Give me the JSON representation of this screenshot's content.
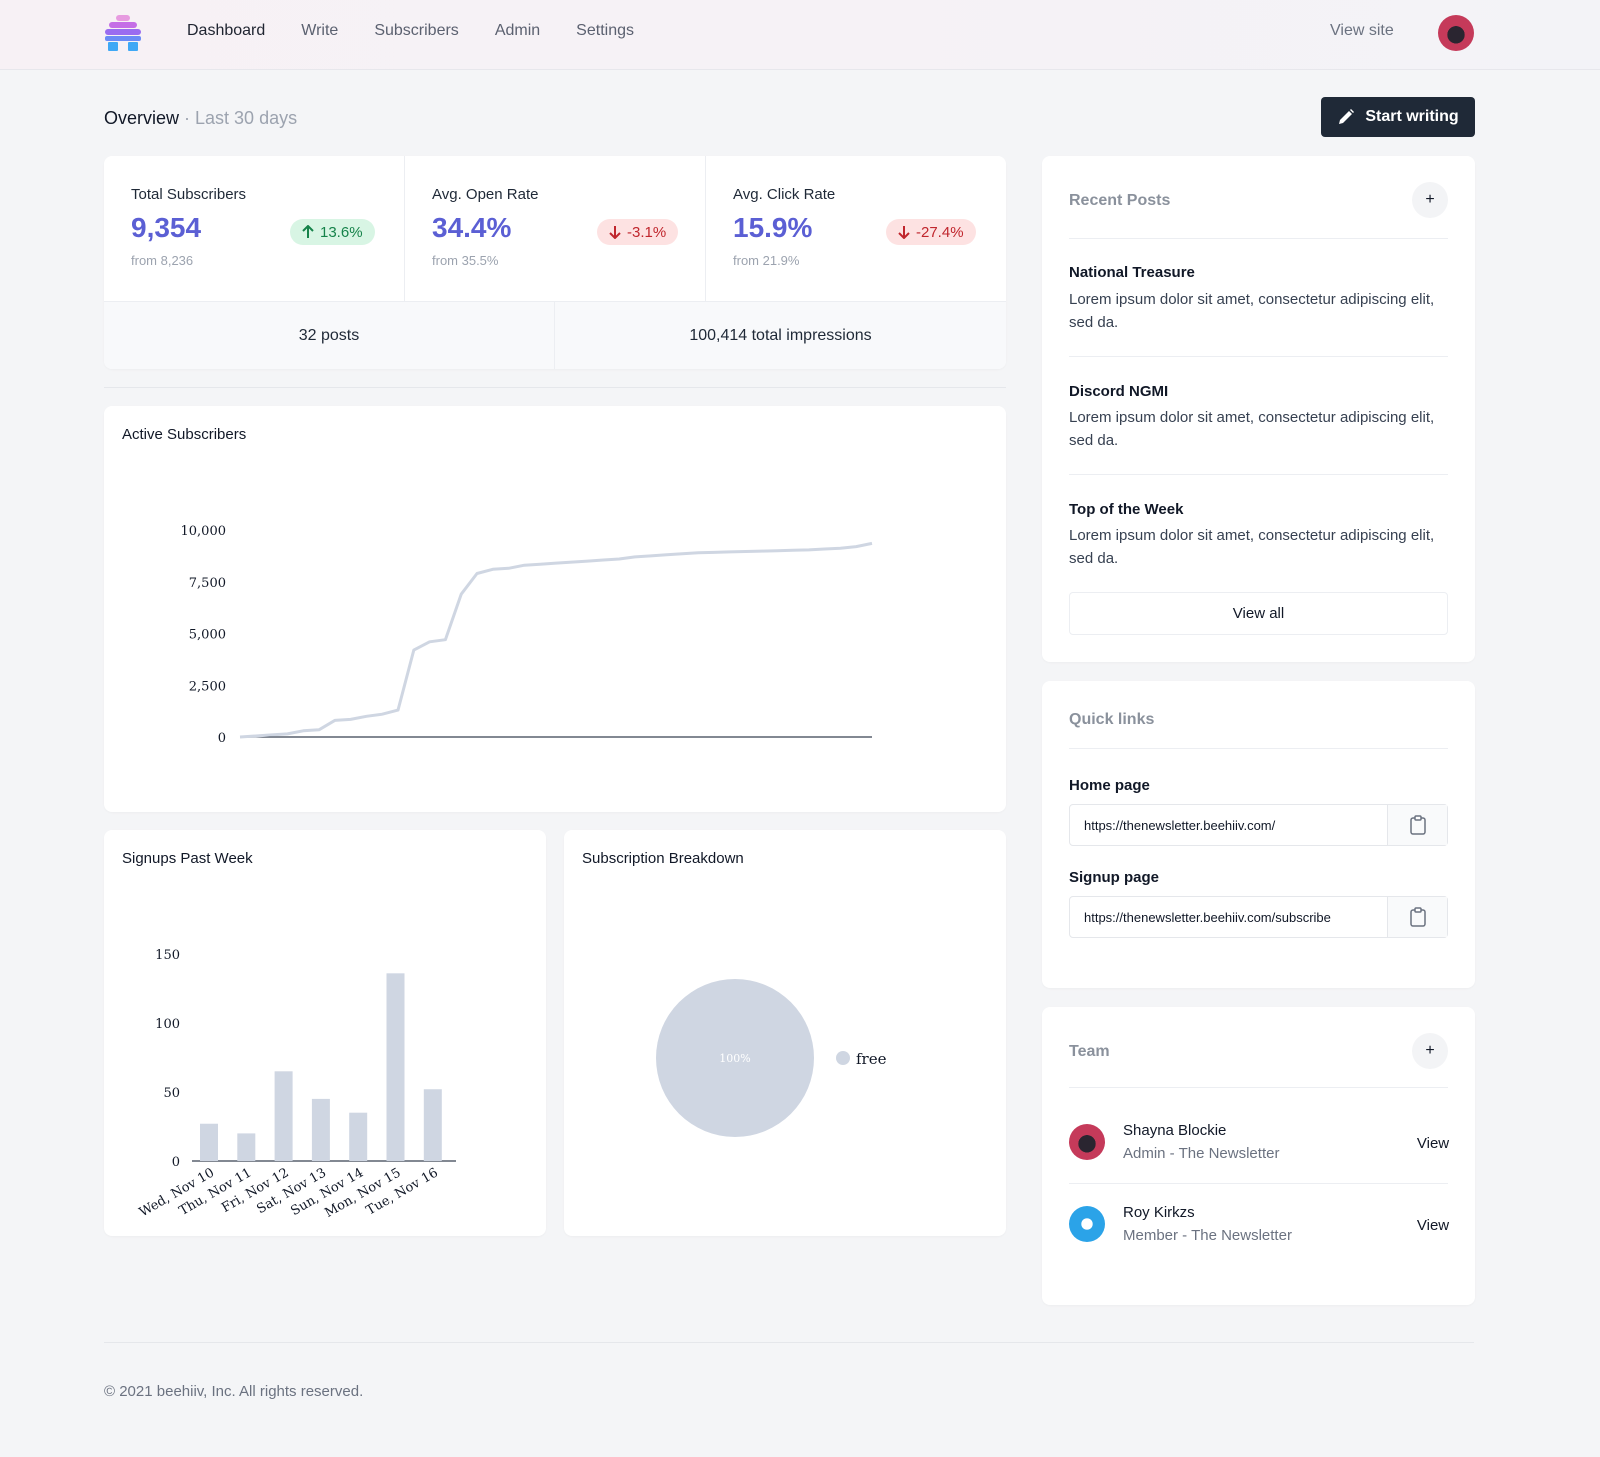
{
  "nav": {
    "links": [
      "Dashboard",
      "Write",
      "Subscribers",
      "Admin",
      "Settings"
    ],
    "view_site": "View site"
  },
  "header": {
    "title": "Overview",
    "subtitle": "· Last 30 days",
    "start_writing": "Start writing"
  },
  "stats": [
    {
      "label": "Total Subscribers",
      "value": "9,354",
      "from": "from 8,236",
      "change": "13.6%",
      "direction": "up"
    },
    {
      "label": "Avg. Open Rate",
      "value": "34.4%",
      "from": "from 35.5%",
      "change": "-3.1%",
      "direction": "down"
    },
    {
      "label": "Avg. Click Rate",
      "value": "15.9%",
      "from": "from 21.9%",
      "change": "-27.4%",
      "direction": "down"
    }
  ],
  "totals": {
    "posts": "32 posts",
    "impressions": "100,414 total impressions"
  },
  "chart_data": [
    {
      "type": "line",
      "title": "Active Subscribers",
      "ylim": [
        0,
        10000
      ],
      "yticks": [
        "0",
        "2,500",
        "5,000",
        "7,500",
        "10,000"
      ],
      "ytick_values": [
        0,
        2500,
        5000,
        7500,
        10000
      ],
      "values": [
        0,
        50,
        100,
        150,
        300,
        350,
        800,
        850,
        1000,
        1100,
        1300,
        4200,
        4600,
        4700,
        6900,
        7900,
        8100,
        8150,
        8300,
        8350,
        8400,
        8450,
        8500,
        8550,
        8600,
        8700,
        8750,
        8800,
        8850,
        8900,
        8920,
        8940,
        8960,
        8980,
        9000,
        9020,
        9040,
        9080,
        9120,
        9200,
        9354
      ],
      "color": "#cfd6e2",
      "grid": false
    },
    {
      "type": "bar",
      "title": "Signups Past Week",
      "categories": [
        "Wed, Nov 10",
        "Thu, Nov 11",
        "Fri, Nov 12",
        "Sat, Nov 13",
        "Sun, Nov 14",
        "Mon, Nov 15",
        "Tue, Nov 16"
      ],
      "values": [
        27,
        20,
        65,
        45,
        35,
        136,
        52
      ],
      "ylim": [
        0,
        150
      ],
      "yticks": [
        "0",
        "50",
        "100",
        "150"
      ],
      "ytick_values": [
        0,
        50,
        100,
        150
      ],
      "color": "#cfd6e2"
    },
    {
      "type": "pie",
      "title": "Subscription Breakdown",
      "slices": [
        {
          "label": "free",
          "value": 100,
          "display": "100%"
        }
      ],
      "color": "#cfd6e2",
      "legend": "right"
    }
  ],
  "recent_posts": {
    "title": "Recent Posts",
    "add": "+",
    "posts": [
      {
        "title": "National Treasure",
        "desc": "Lorem ipsum dolor sit amet, consectetur adipiscing elit, sed da."
      },
      {
        "title": "Discord NGMI",
        "desc": "Lorem ipsum dolor sit amet, consectetur adipiscing elit, sed da."
      },
      {
        "title": "Top of the Week",
        "desc": "Lorem ipsum dolor sit amet, consectetur adipiscing elit, sed da."
      }
    ],
    "view_all": "View all"
  },
  "quick_links": {
    "title": "Quick links",
    "home_label": "Home page",
    "home_url": "https://thenewsletter.beehiiv.com/",
    "signup_label": "Signup page",
    "signup_url": "https://thenewsletter.beehiiv.com/subscribe"
  },
  "team": {
    "title": "Team",
    "add": "+",
    "members": [
      {
        "name": "Shayna Blockie",
        "role": "Admin - The Newsletter",
        "action": "View"
      },
      {
        "name": "Roy Kirkzs",
        "role": "Member - The Newsletter",
        "action": "View"
      }
    ]
  },
  "footer": "© 2021 beehiiv, Inc. All rights reserved.",
  "colors": {
    "accent": "#5b5fd4",
    "up": "#16834a",
    "down": "#c0262d",
    "dark_button": "#1f2937"
  }
}
